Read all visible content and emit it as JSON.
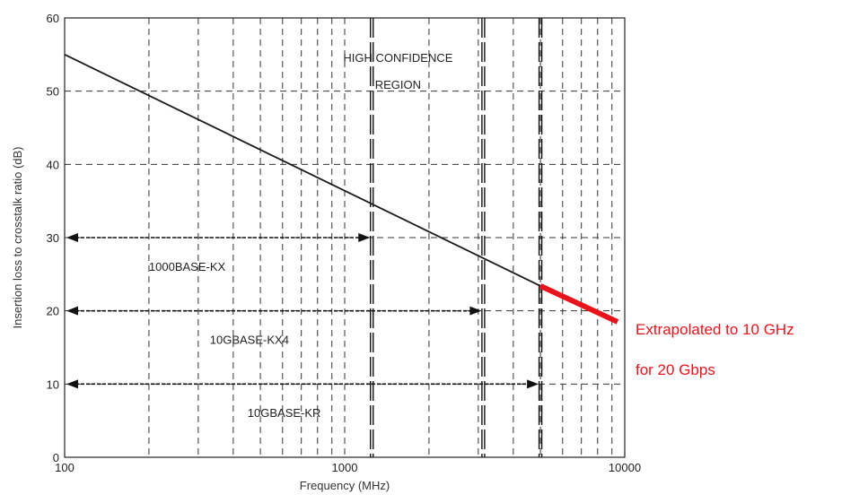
{
  "chart_data": {
    "type": "line",
    "xlabel": "Frequency (MHz)",
    "ylabel": "Insertion loss to crosstalk ratio (dB)",
    "x_scale": "log",
    "xlim": [
      100,
      10000
    ],
    "ylim": [
      0,
      60
    ],
    "x_ticks": [
      100,
      1000,
      10000
    ],
    "x_tick_labels": [
      "100",
      "1000",
      "10000"
    ],
    "y_ticks": [
      0,
      10,
      20,
      30,
      40,
      50,
      60
    ],
    "y_tick_labels": [
      "0",
      "10",
      "20",
      "30",
      "40",
      "50",
      "60"
    ],
    "grid": true,
    "colors": {
      "line": "#1a1a1a",
      "extrapolation": "#e8141c",
      "grid": "#333333"
    },
    "series": [
      {
        "x": [
          100,
          5000
        ],
        "y": [
          55.0,
          23.4
        ]
      },
      {
        "x": [
          5000,
          10000
        ],
        "y": [
          23.4,
          18.5
        ]
      }
    ],
    "markers": [
      {
        "x": 1250,
        "dash": "long"
      },
      {
        "x": 3125,
        "dash": "long"
      },
      {
        "x": 5000,
        "dash": "long"
      }
    ],
    "ranges": [
      {
        "label": "1000BASE-KX",
        "x_start": 100,
        "x_end": 1250,
        "y": 30,
        "label_x": 200,
        "label_y": 25.5
      },
      {
        "label": "10GBASE-KX4",
        "x_start": 100,
        "x_end": 3125,
        "y": 20,
        "label_x": 330,
        "label_y": 15.5
      },
      {
        "label": "10GBASE-KR",
        "x_start": 100,
        "x_end": 5000,
        "y": 10,
        "label_x": 450,
        "label_y": 5.5
      }
    ],
    "region_label": {
      "lines": [
        "HIGH CONFIDENCE",
        "REGION"
      ],
      "x": 1550,
      "y_lines": [
        54,
        50.3
      ]
    },
    "extrapolation_note": {
      "lines": [
        "Extrapolated to 10 GHz",
        "for 20 Gbps"
      ]
    }
  }
}
